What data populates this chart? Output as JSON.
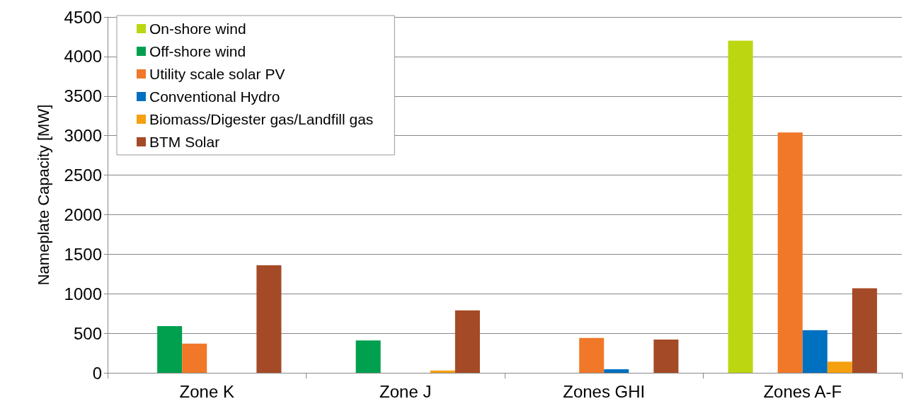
{
  "chart_data": {
    "type": "bar",
    "ylabel": "Nameplate Capacity [MW]",
    "categories": [
      "Zone K",
      "Zone J",
      "Zones GHI",
      "Zones A-F"
    ],
    "series": [
      {
        "name": "On-shore wind",
        "color": "#bcd711",
        "values": [
          0,
          0,
          0,
          4200
        ]
      },
      {
        "name": "Off-shore wind",
        "color": "#00a04f",
        "values": [
          590,
          410,
          0,
          0
        ]
      },
      {
        "name": "Utility scale solar PV",
        "color": "#f07828",
        "values": [
          370,
          0,
          440,
          3040
        ]
      },
      {
        "name": "Conventional Hydro",
        "color": "#0070c0",
        "values": [
          0,
          0,
          45,
          540
        ]
      },
      {
        "name": "Biomass/Digester gas/Landfill gas",
        "color": "#f5a00f",
        "values": [
          0,
          30,
          0,
          140
        ]
      },
      {
        "name": "BTM Solar",
        "color": "#a54a27",
        "values": [
          1360,
          790,
          420,
          1070
        ]
      }
    ],
    "ylim": [
      0,
      4500
    ],
    "yticks": [
      0,
      500,
      1000,
      1500,
      2000,
      2500,
      3000,
      3500,
      4000,
      4500
    ],
    "grid": "y",
    "legend": "top left"
  }
}
